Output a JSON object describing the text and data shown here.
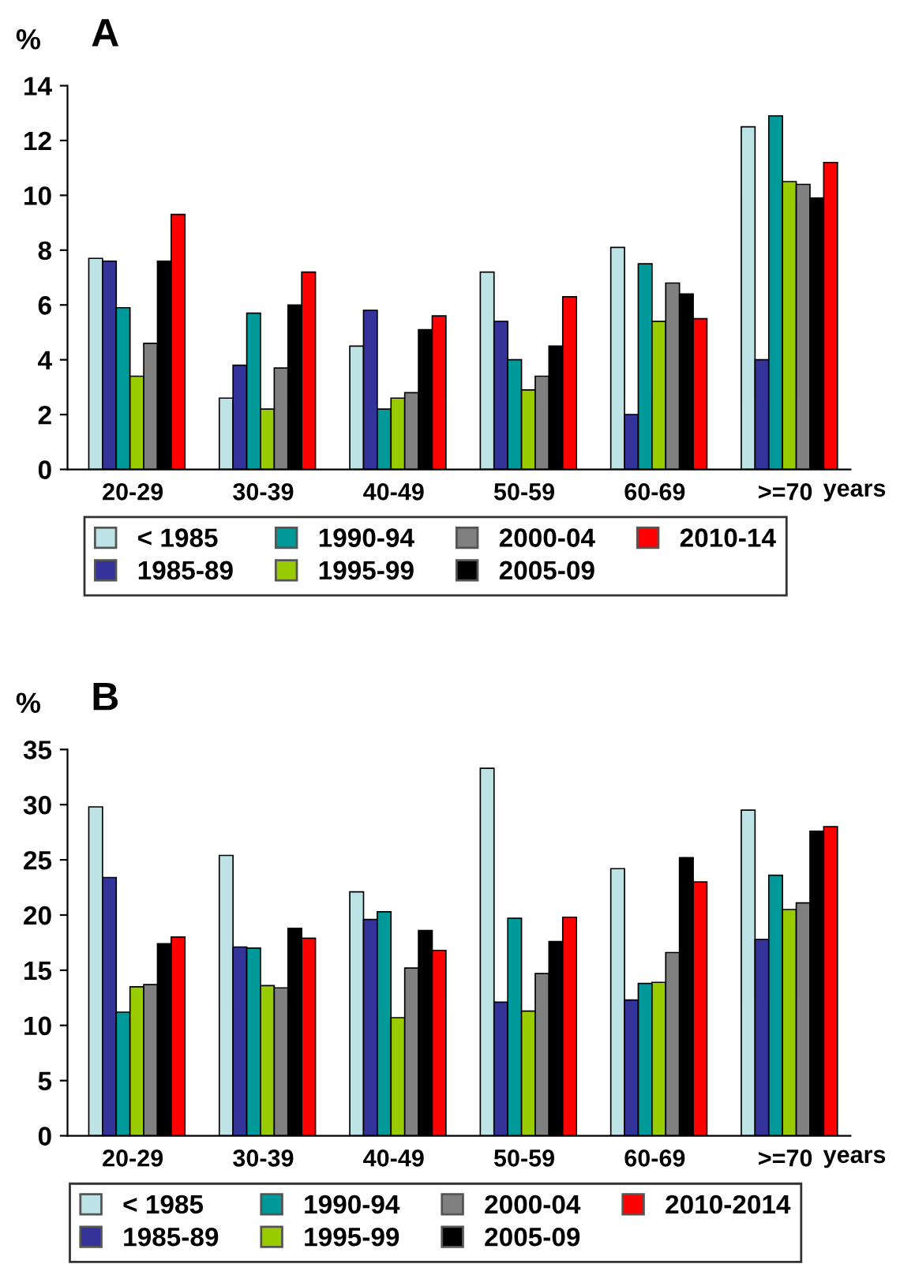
{
  "chart_data": [
    {
      "type": "bar",
      "title": "A",
      "ylabel": "%",
      "xlabel": "years",
      "categories": [
        "20-29",
        "30-39",
        "40-49",
        "50-59",
        "60-69",
        ">=70"
      ],
      "ylim": [
        0,
        14
      ],
      "yticks": [
        0,
        2,
        4,
        6,
        8,
        10,
        12,
        14
      ],
      "grid": false,
      "legend": "bottom",
      "series": [
        {
          "name": "< 1985",
          "color": "#bde3e6",
          "values": [
            7.7,
            2.6,
            4.5,
            7.2,
            8.1,
            12.5
          ]
        },
        {
          "name": "1985-89",
          "color": "#333399",
          "values": [
            7.6,
            3.8,
            5.8,
            5.4,
            2.0,
            4.0
          ]
        },
        {
          "name": "1990-94",
          "color": "#009999",
          "values": [
            5.9,
            5.7,
            2.2,
            4.0,
            7.5,
            12.9
          ]
        },
        {
          "name": "1995-99",
          "color": "#99cc00",
          "values": [
            3.4,
            2.2,
            2.6,
            2.9,
            5.4,
            10.5
          ]
        },
        {
          "name": "2000-04",
          "color": "#808080",
          "values": [
            4.6,
            3.7,
            2.8,
            3.4,
            6.8,
            10.4
          ]
        },
        {
          "name": "2005-09",
          "color": "#000000",
          "values": [
            7.6,
            6.0,
            5.1,
            4.5,
            6.4,
            9.9
          ]
        },
        {
          "name": "2010-14",
          "color": "#ff0000",
          "values": [
            9.3,
            7.2,
            5.6,
            6.3,
            5.5,
            11.2
          ]
        }
      ]
    },
    {
      "type": "bar",
      "title": "B",
      "ylabel": "%",
      "xlabel": "years",
      "categories": [
        "20-29",
        "30-39",
        "40-49",
        "50-59",
        "60-69",
        ">=70"
      ],
      "ylim": [
        0,
        35
      ],
      "yticks": [
        0,
        5,
        10,
        15,
        20,
        25,
        30,
        35
      ],
      "grid": false,
      "legend": "bottom",
      "series": [
        {
          "name": "< 1985",
          "color": "#bde3e6",
          "values": [
            29.8,
            25.4,
            22.1,
            33.3,
            24.2,
            29.5
          ]
        },
        {
          "name": "1985-89",
          "color": "#333399",
          "values": [
            23.4,
            17.1,
            19.6,
            12.1,
            12.3,
            17.8
          ]
        },
        {
          "name": "1990-94",
          "color": "#009999",
          "values": [
            11.2,
            17.0,
            20.3,
            19.7,
            13.8,
            23.6
          ]
        },
        {
          "name": "1995-99",
          "color": "#99cc00",
          "values": [
            13.5,
            13.6,
            10.7,
            11.3,
            13.9,
            20.5
          ]
        },
        {
          "name": "2000-04",
          "color": "#808080",
          "values": [
            13.7,
            13.4,
            15.2,
            14.7,
            16.6,
            21.1
          ]
        },
        {
          "name": "2005-09",
          "color": "#000000",
          "values": [
            17.4,
            18.8,
            18.6,
            17.6,
            25.2,
            27.6
          ]
        },
        {
          "name": "2010-2014",
          "color": "#ff0000",
          "values": [
            18.0,
            17.9,
            16.8,
            19.8,
            23.0,
            28.0
          ]
        }
      ]
    }
  ]
}
